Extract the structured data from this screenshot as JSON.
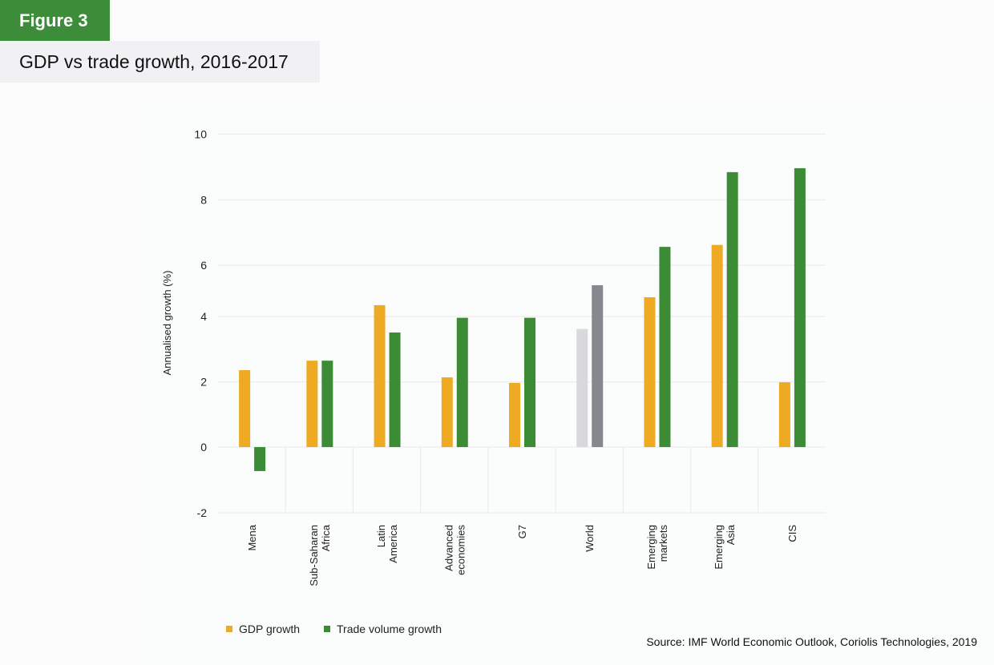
{
  "figure": {
    "badge": "Figure 3",
    "title": "GDP vs trade growth, 2016-2017",
    "source": "Source: IMF World Economic Outlook, Coriolis Technologies, 2019"
  },
  "colors": {
    "gdp": "#eeaa22",
    "trade": "#3c8c36",
    "world_gdp": "#d9d9db",
    "world_trade": "#85888f",
    "grid": "#ececec",
    "badge": "#3c8c3a"
  },
  "chart_data": {
    "type": "bar",
    "title": "GDP vs trade growth, 2016-2017",
    "xlabel": "",
    "ylabel": "Annualised growth (%)",
    "ylim": [
      -2,
      10
    ],
    "yticks": [
      -2,
      0,
      2,
      4,
      6,
      8,
      10
    ],
    "grid": true,
    "legend_position": "bottom-left",
    "categories": [
      [
        "Mena"
      ],
      [
        "Sub-Saharan",
        "Africa"
      ],
      [
        "Latin",
        "America"
      ],
      [
        "Advanced",
        "economies"
      ],
      [
        "G7"
      ],
      [
        "World"
      ],
      [
        "Emerging",
        "markets"
      ],
      [
        "Emerging",
        "Asia"
      ],
      [
        "CIS"
      ]
    ],
    "series": [
      {
        "name": "GDP growth",
        "values": [
          2.36,
          2.65,
          4.44,
          2.14,
          1.97,
          3.62,
          4.75,
          6.62,
          1.99
        ]
      },
      {
        "name": "Trade volume growth",
        "values": [
          -0.73,
          2.65,
          3.51,
          3.96,
          3.96,
          5.22,
          6.56,
          8.84,
          8.96
        ]
      }
    ],
    "highlight_category": "World"
  },
  "legend": [
    {
      "label": "GDP growth",
      "color": "#eeaa22"
    },
    {
      "label": "Trade volume growth",
      "color": "#3c8c36"
    }
  ]
}
